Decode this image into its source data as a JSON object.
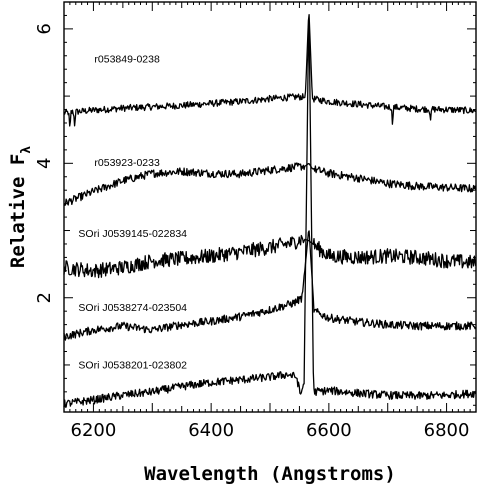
{
  "chart_data": {
    "type": "line",
    "title": "",
    "xlabel": "Wavelength (Angstroms)",
    "ylabel": "Relative F",
    "ylabel_subscript": "λ",
    "xlim": [
      6150,
      6850
    ],
    "ylim": [
      0.3,
      6.4
    ],
    "xticks": [
      6200,
      6400,
      6600,
      6800
    ],
    "yticks": [
      2,
      4,
      6
    ],
    "grid": false,
    "legend": "none",
    "line_color": "#000000",
    "series": [
      {
        "name": "r053849-0238",
        "label_pos": [
          6200,
          5.5
        ],
        "points": [
          [
            6150,
            4.75
          ],
          [
            6200,
            4.79
          ],
          [
            6250,
            4.82
          ],
          [
            6300,
            4.84
          ],
          [
            6350,
            4.86
          ],
          [
            6400,
            4.89
          ],
          [
            6450,
            4.92
          ],
          [
            6500,
            4.96
          ],
          [
            6530,
            4.98
          ],
          [
            6550,
            4.99
          ],
          [
            6560,
            4.98
          ],
          [
            6566,
            6.3
          ],
          [
            6572,
            4.96
          ],
          [
            6600,
            4.92
          ],
          [
            6650,
            4.88
          ],
          [
            6700,
            4.84
          ],
          [
            6750,
            4.81
          ],
          [
            6800,
            4.8
          ],
          [
            6850,
            4.78
          ]
        ],
        "noise": 0.05,
        "dips": [
          [
            6160,
            -0.28
          ],
          [
            6168,
            -0.18
          ],
          [
            6708,
            -0.22
          ],
          [
            6773,
            -0.16
          ]
        ]
      },
      {
        "name": "r053923-0233",
        "label_pos": [
          6200,
          3.96
        ],
        "points": [
          [
            6150,
            3.4
          ],
          [
            6200,
            3.58
          ],
          [
            6250,
            3.74
          ],
          [
            6300,
            3.85
          ],
          [
            6350,
            3.88
          ],
          [
            6400,
            3.85
          ],
          [
            6450,
            3.84
          ],
          [
            6500,
            3.9
          ],
          [
            6540,
            3.94
          ],
          [
            6560,
            3.96
          ],
          [
            6566,
            4.0
          ],
          [
            6572,
            3.92
          ],
          [
            6600,
            3.85
          ],
          [
            6650,
            3.78
          ],
          [
            6700,
            3.7
          ],
          [
            6750,
            3.66
          ],
          [
            6800,
            3.64
          ],
          [
            6850,
            3.62
          ]
        ],
        "noise": 0.06,
        "dips": []
      },
      {
        "name": "SOri J0539145-022834",
        "label_pos": [
          6200,
          2.9
        ],
        "points": [
          [
            6150,
            2.45
          ],
          [
            6200,
            2.4
          ],
          [
            6250,
            2.45
          ],
          [
            6300,
            2.55
          ],
          [
            6350,
            2.58
          ],
          [
            6400,
            2.62
          ],
          [
            6450,
            2.68
          ],
          [
            6500,
            2.75
          ],
          [
            6540,
            2.82
          ],
          [
            6555,
            2.88
          ],
          [
            6566,
            2.85
          ],
          [
            6580,
            2.75
          ],
          [
            6600,
            2.62
          ],
          [
            6650,
            2.6
          ],
          [
            6700,
            2.62
          ],
          [
            6750,
            2.6
          ],
          [
            6800,
            2.55
          ],
          [
            6850,
            2.52
          ]
        ],
        "noise": 0.11,
        "dips": []
      },
      {
        "name": "SOri J0538274-023504",
        "label_pos": [
          6200,
          1.8
        ],
        "points": [
          [
            6150,
            1.42
          ],
          [
            6200,
            1.52
          ],
          [
            6250,
            1.58
          ],
          [
            6300,
            1.52
          ],
          [
            6350,
            1.6
          ],
          [
            6400,
            1.65
          ],
          [
            6450,
            1.72
          ],
          [
            6500,
            1.82
          ],
          [
            6540,
            1.92
          ],
          [
            6555,
            2.0
          ],
          [
            6566,
            3.05
          ],
          [
            6575,
            1.8
          ],
          [
            6600,
            1.7
          ],
          [
            6650,
            1.64
          ],
          [
            6700,
            1.6
          ],
          [
            6750,
            1.58
          ],
          [
            6800,
            1.58
          ],
          [
            6850,
            1.58
          ]
        ],
        "noise": 0.06,
        "dips": []
      },
      {
        "name": "SOri J0538201-023802",
        "label_pos": [
          6200,
          0.95
        ],
        "points": [
          [
            6150,
            0.42
          ],
          [
            6200,
            0.48
          ],
          [
            6250,
            0.55
          ],
          [
            6300,
            0.6
          ],
          [
            6350,
            0.68
          ],
          [
            6400,
            0.74
          ],
          [
            6450,
            0.78
          ],
          [
            6500,
            0.82
          ],
          [
            6530,
            0.86
          ],
          [
            6545,
            0.82
          ],
          [
            6552,
            0.55
          ],
          [
            6558,
            0.75
          ],
          [
            6566,
            6.4
          ],
          [
            6574,
            0.6
          ],
          [
            6600,
            0.62
          ],
          [
            6650,
            0.58
          ],
          [
            6700,
            0.55
          ],
          [
            6750,
            0.54
          ],
          [
            6800,
            0.55
          ],
          [
            6850,
            0.58
          ]
        ],
        "noise": 0.06,
        "dips": []
      }
    ]
  }
}
